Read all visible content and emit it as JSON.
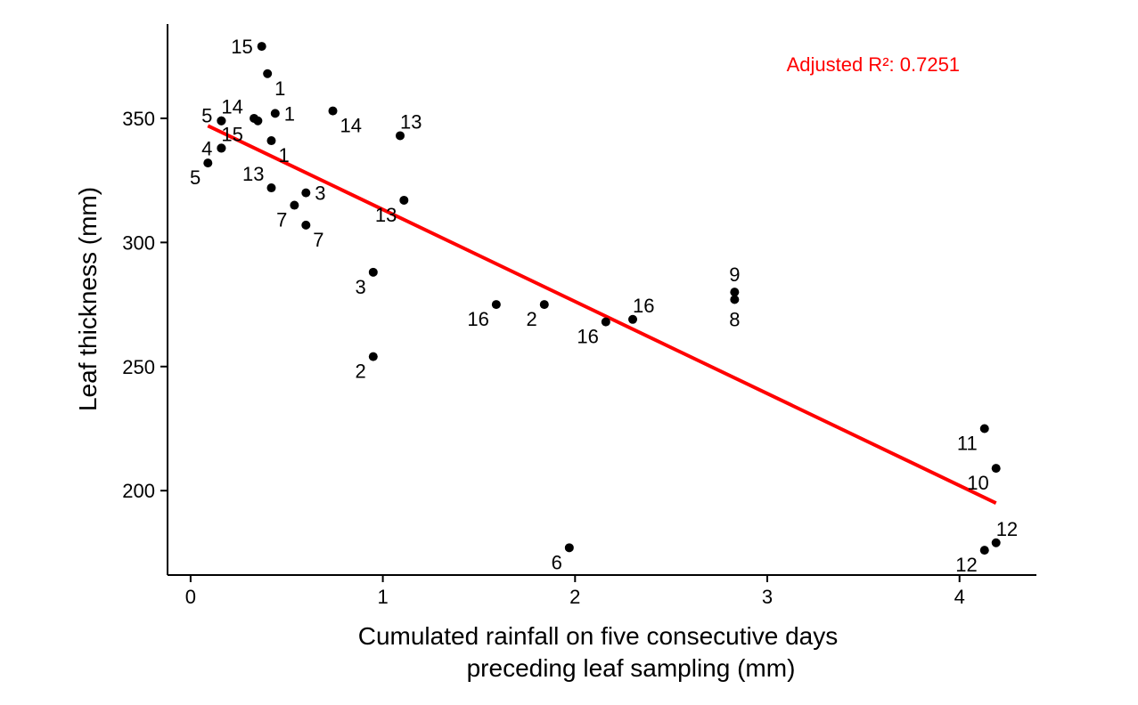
{
  "chart_data": {
    "type": "scatter",
    "title": "",
    "xlabel_lines": [
      "Cumulated rainfall on five consecutive days",
      "preceding leaf sampling (mm)"
    ],
    "ylabel": "Leaf thickness (mm)",
    "xlim": [
      -0.12,
      4.4
    ],
    "ylim": [
      166,
      388
    ],
    "x_ticks": [
      0,
      1,
      2,
      3,
      4
    ],
    "y_ticks": [
      200,
      250,
      300,
      350
    ],
    "grid": false,
    "legend": "none",
    "point_color": "#000000",
    "fit_color": "#ff0000",
    "annotation": {
      "text": "Adjusted R²: 0.7251",
      "color": "#ff0000",
      "x": 3.1,
      "y": 369
    },
    "points": [
      {
        "x": 0.37,
        "y": 379,
        "label": "15",
        "pos": "left"
      },
      {
        "x": 0.4,
        "y": 368,
        "label": "1",
        "pos": "below-right"
      },
      {
        "x": 0.44,
        "y": 352,
        "label": "1",
        "pos": "right"
      },
      {
        "x": 0.16,
        "y": 349,
        "label": "5",
        "pos": "left-up"
      },
      {
        "x": 0.16,
        "y": 349,
        "label": "14",
        "pos": "above-right"
      },
      {
        "x": 0.33,
        "y": 350,
        "label": "",
        "pos": "none"
      },
      {
        "x": 0.35,
        "y": 349,
        "label": "",
        "pos": "none"
      },
      {
        "x": 0.74,
        "y": 353,
        "label": "14",
        "pos": "below-right"
      },
      {
        "x": 1.09,
        "y": 343,
        "label": "13",
        "pos": "above-right"
      },
      {
        "x": 0.16,
        "y": 338,
        "label": "4",
        "pos": "left"
      },
      {
        "x": 0.16,
        "y": 338,
        "label": "15",
        "pos": "above-right"
      },
      {
        "x": 0.42,
        "y": 341,
        "label": "1",
        "pos": "below-right"
      },
      {
        "x": 0.09,
        "y": 332,
        "label": "5",
        "pos": "below-left"
      },
      {
        "x": 0.42,
        "y": 322,
        "label": "13",
        "pos": "above-left"
      },
      {
        "x": 0.6,
        "y": 320,
        "label": "3",
        "pos": "right"
      },
      {
        "x": 0.54,
        "y": 315,
        "label": "7",
        "pos": "below-left"
      },
      {
        "x": 0.6,
        "y": 307,
        "label": "7",
        "pos": "below-right"
      },
      {
        "x": 1.11,
        "y": 317,
        "label": "13",
        "pos": "below-left"
      },
      {
        "x": 0.95,
        "y": 288,
        "label": "3",
        "pos": "below-left"
      },
      {
        "x": 0.95,
        "y": 254,
        "label": "2",
        "pos": "below-left"
      },
      {
        "x": 1.59,
        "y": 275,
        "label": "16",
        "pos": "below-left"
      },
      {
        "x": 1.84,
        "y": 275,
        "label": "2",
        "pos": "below-left"
      },
      {
        "x": 2.16,
        "y": 268,
        "label": "16",
        "pos": "below-left"
      },
      {
        "x": 2.3,
        "y": 269,
        "label": "16",
        "pos": "above-right"
      },
      {
        "x": 2.83,
        "y": 280,
        "label": "9",
        "pos": "above"
      },
      {
        "x": 2.83,
        "y": 277,
        "label": "8",
        "pos": "below"
      },
      {
        "x": 4.13,
        "y": 225,
        "label": "11",
        "pos": "below-left"
      },
      {
        "x": 4.19,
        "y": 209,
        "label": "10",
        "pos": "below-left"
      },
      {
        "x": 4.19,
        "y": 179,
        "label": "12",
        "pos": "above-right"
      },
      {
        "x": 4.13,
        "y": 176,
        "label": "12",
        "pos": "below-left"
      },
      {
        "x": 1.97,
        "y": 177,
        "label": "6",
        "pos": "below-left"
      }
    ],
    "fit_line": {
      "x": [
        0.09,
        4.19
      ],
      "y": [
        347,
        195
      ]
    }
  }
}
